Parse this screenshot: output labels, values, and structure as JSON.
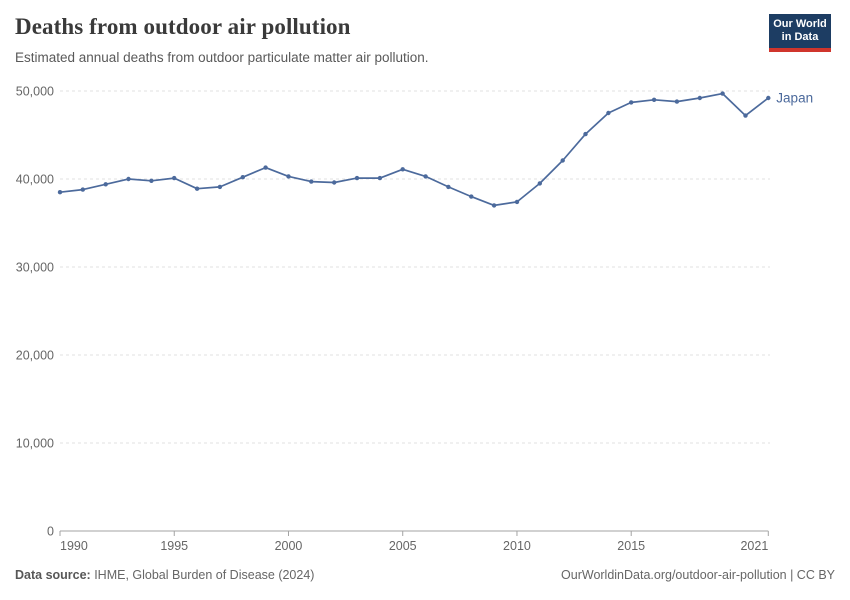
{
  "header": {
    "title": "Deaths from outdoor air pollution",
    "subtitle": "Estimated annual deaths from outdoor particulate matter air pollution.",
    "logo": {
      "line1": "Our World",
      "line2": "in Data",
      "bg_color": "#1d3d63",
      "accent_color": "#d0352c"
    }
  },
  "chart_data": {
    "type": "line",
    "title": "Deaths from outdoor air pollution",
    "xlabel": "",
    "ylabel": "",
    "grid": "horizontal-dashed",
    "legend_position": "end-of-line",
    "marker": "circle",
    "xlim": [
      1990,
      2021
    ],
    "ylim": [
      0,
      50000
    ],
    "x": [
      1990,
      1991,
      1992,
      1993,
      1994,
      1995,
      1996,
      1997,
      1998,
      1999,
      2000,
      2001,
      2002,
      2003,
      2004,
      2005,
      2006,
      2007,
      2008,
      2009,
      2010,
      2011,
      2012,
      2013,
      2014,
      2015,
      2016,
      2017,
      2018,
      2019,
      2020,
      2021
    ],
    "x_ticks": [
      1990,
      1995,
      2000,
      2005,
      2010,
      2015,
      2021
    ],
    "x_tick_labels": [
      "1990",
      "1995",
      "2000",
      "2005",
      "2010",
      "2015",
      "2021"
    ],
    "y_ticks": [
      0,
      10000,
      20000,
      30000,
      40000,
      50000
    ],
    "y_tick_labels": [
      "0",
      "10,000",
      "20,000",
      "30,000",
      "40,000",
      "50,000"
    ],
    "series": [
      {
        "name": "Japan",
        "color": "#4c6a9c",
        "values": [
          38500,
          38800,
          39400,
          40000,
          39800,
          40100,
          38900,
          39100,
          40200,
          41300,
          40300,
          39700,
          39600,
          40100,
          40100,
          41100,
          40300,
          39100,
          38000,
          37000,
          37400,
          39500,
          42100,
          45100,
          47500,
          48700,
          49000,
          48800,
          49200,
          49700,
          47200,
          49200
        ]
      }
    ],
    "colors": {
      "gridline": "#e0e0e0",
      "axis": "#a3a3a3",
      "tick_label": "#666666"
    }
  },
  "footer": {
    "source_label": "Data source:",
    "source_text": " IHME, Global Burden of Disease (2024)",
    "link_text": "OurWorldinData.org/outdoor-air-pollution | CC BY"
  }
}
